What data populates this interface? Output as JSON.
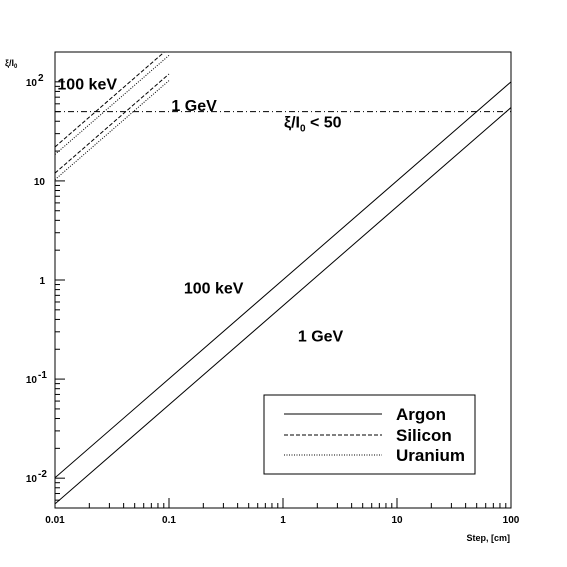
{
  "chart_data": {
    "type": "line",
    "title": "",
    "xlabel": "Step, [cm]",
    "ylabel": "ξ/I₀",
    "xscale": "log",
    "yscale": "log",
    "xlim": [
      0.01,
      100
    ],
    "ylim": [
      0.005,
      200
    ],
    "grid": false,
    "legend_position": "bottom-right",
    "x_ticks": [
      {
        "value": 0.01,
        "label": "0.01"
      },
      {
        "value": 0.1,
        "label": "0.1"
      },
      {
        "value": 1,
        "label": "1"
      },
      {
        "value": 10,
        "label": "10"
      },
      {
        "value": 100,
        "label": "100"
      }
    ],
    "y_ticks": [
      {
        "value": 0.01,
        "base": "10",
        "exp": "-2"
      },
      {
        "value": 0.1,
        "base": "10",
        "exp": "-1"
      },
      {
        "value": 1,
        "base": "1",
        "exp": ""
      },
      {
        "value": 10,
        "base": "10",
        "exp": ""
      },
      {
        "value": 100,
        "base": "10",
        "exp": "2"
      }
    ],
    "legend": [
      {
        "label": "Argon",
        "dash": "solid"
      },
      {
        "label": "Silicon",
        "dash": "dashed"
      },
      {
        "label": "Uranium",
        "dash": "dotted"
      }
    ],
    "series": [
      {
        "name": "Argon",
        "energy": "100 keV",
        "dash": "solid",
        "x": [
          0.01,
          100
        ],
        "y": [
          0.0101,
          100
        ]
      },
      {
        "name": "Argon",
        "energy": "1 GeV",
        "dash": "solid",
        "x": [
          0.01,
          100
        ],
        "y": [
          0.0055,
          55
        ]
      },
      {
        "name": "Silicon",
        "energy": "100 keV",
        "dash": "dashed",
        "x": [
          0.01,
          0.1
        ],
        "y": [
          22,
          220
        ]
      },
      {
        "name": "Silicon",
        "energy": "1 GeV",
        "dash": "dashed",
        "x": [
          0.01,
          0.1
        ],
        "y": [
          12,
          120
        ]
      },
      {
        "name": "Uranium",
        "energy": "100 keV",
        "dash": "dotted",
        "x": [
          0.01,
          0.1
        ],
        "y": [
          18.5,
          185
        ]
      },
      {
        "name": "Uranium",
        "energy": "1 GeV",
        "dash": "dotted",
        "x": [
          0.01,
          0.1
        ],
        "y": [
          10.3,
          103
        ]
      }
    ],
    "threshold": {
      "y": 50,
      "dash": "dashdot"
    },
    "annotations": [
      {
        "text": "100 keV",
        "x": 0.0105,
        "y": 84
      },
      {
        "text": "1 GeV",
        "x": 0.105,
        "y": 51
      },
      {
        "text": "100 keV",
        "x": 0.135,
        "y": 0.73
      },
      {
        "text": "1 GeV",
        "x": 1.35,
        "y": 0.24
      }
    ],
    "threshold_label": {
      "xi": "ξ/I",
      "sub": "0",
      "rest": " < 50",
      "x": 1.02,
      "y": 34.5
    }
  }
}
